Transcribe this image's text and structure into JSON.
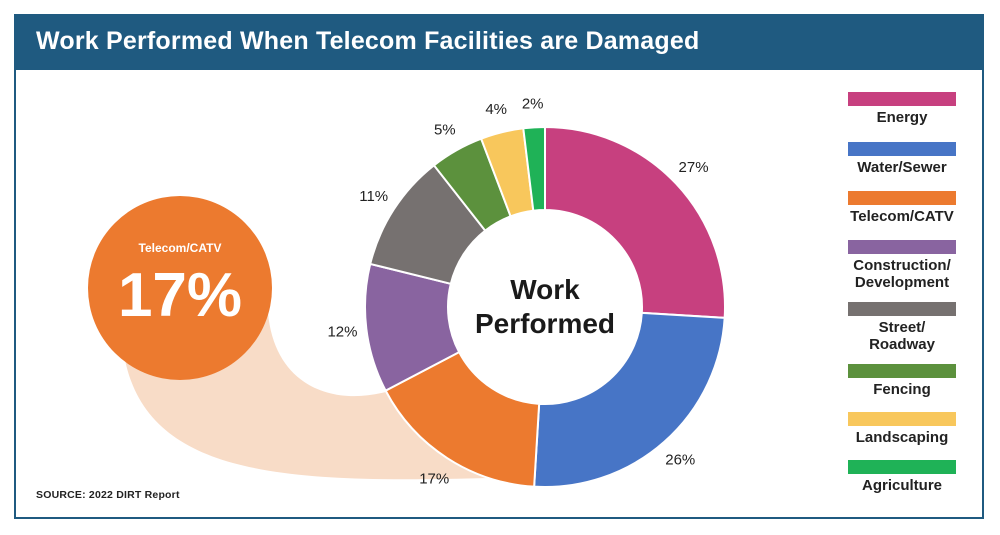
{
  "title": "Work Performed When Telecom Facilities are Damaged",
  "source": "SOURCE: 2022 DIRT Report",
  "center_label": [
    "Work",
    "Performed"
  ],
  "callout": {
    "label": "Telecom/CATV",
    "value": "17%",
    "color": "#ec7a2f",
    "band_color": "#f8dcc7"
  },
  "colors": {
    "header": "#1f5a80",
    "Energy": "#c7407f",
    "Water/Sewer": "#4775c6",
    "Telecom/CATV": "#ec7a2f",
    "Construction/Development": "#8964a0",
    "Street/Roadway": "#767170",
    "Fencing": "#5c913d",
    "Landscaping": "#f8c75c",
    "Agriculture": "#1fb257"
  },
  "legend": [
    {
      "label": "Energy",
      "color": "#c7407f"
    },
    {
      "label": "Water/Sewer",
      "color": "#4775c6"
    },
    {
      "label": "Telecom/CATV",
      "color": "#ec7a2f"
    },
    {
      "label": "Construction/\nDevelopment",
      "color": "#8964a0"
    },
    {
      "label": "Street/\nRoadway",
      "color": "#767170"
    },
    {
      "label": "Fencing",
      "color": "#5c913d"
    },
    {
      "label": "Landscaping",
      "color": "#f8c75c"
    },
    {
      "label": "Agriculture",
      "color": "#1fb257"
    }
  ],
  "chart_data": {
    "type": "pie",
    "donut": true,
    "categories": [
      "Energy",
      "Water/Sewer",
      "Telecom/CATV",
      "Construction/Development",
      "Street/Roadway",
      "Fencing",
      "Landscaping",
      "Agriculture"
    ],
    "values": [
      27,
      26,
      17,
      12,
      11,
      5,
      4,
      2
    ],
    "data_labels": [
      "27%",
      "26%",
      "17%",
      "12%",
      "11%",
      "5%",
      "4%",
      "2%"
    ],
    "legend_position": "right"
  }
}
